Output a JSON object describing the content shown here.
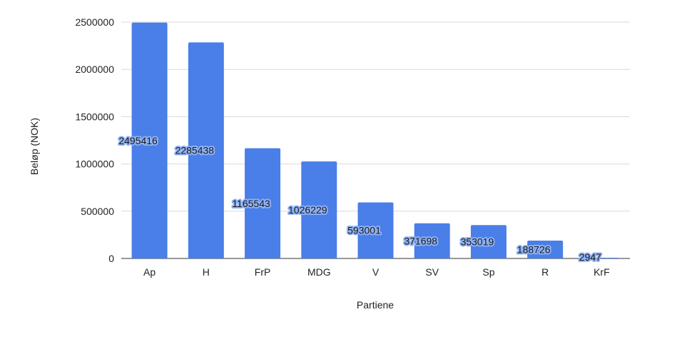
{
  "chart_data": {
    "type": "bar",
    "title": "",
    "xlabel": "Partiene",
    "ylabel": "Beløp (NOK)",
    "categories": [
      "Ap",
      "H",
      "FrP",
      "MDG",
      "V",
      "SV",
      "Sp",
      "R",
      "KrF"
    ],
    "values": [
      2495416,
      2285438,
      1165543,
      1026229,
      593001,
      371698,
      353019,
      188726,
      2947
    ],
    "data_labels": [
      "2495416",
      "2285438",
      "1165543",
      "1026229",
      "593001",
      "371698",
      "353019",
      "188726",
      "2947"
    ],
    "ylim": [
      0,
      2500000
    ],
    "yticks": [
      "0",
      "500000",
      "1000000",
      "1500000",
      "2000000",
      "2500000"
    ],
    "grid": true,
    "legend": "none",
    "colors": {
      "bar": "#4a7ee8",
      "grid": "#d9d9d9",
      "label_halo": "#8fb2f5"
    }
  }
}
